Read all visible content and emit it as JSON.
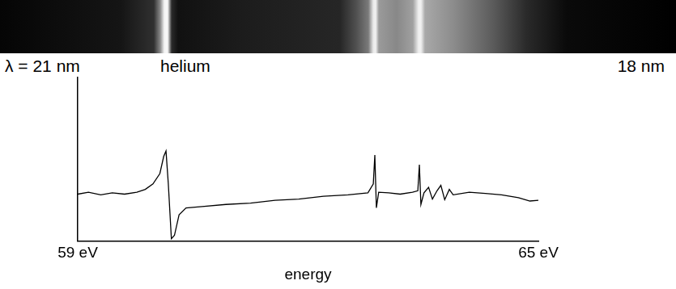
{
  "spectrum_image": {
    "left_label": "λ = 21 nm",
    "center_label": "helium",
    "right_label": "18 nm"
  },
  "chart_data": {
    "type": "line",
    "xlabel": "energy",
    "x": [
      59.0,
      59.14,
      59.3,
      59.45,
      59.61,
      59.77,
      59.88,
      59.98,
      60.07,
      60.12,
      60.15,
      60.18,
      60.22,
      60.26,
      60.32,
      60.41,
      60.62,
      60.93,
      61.25,
      61.57,
      61.88,
      62.2,
      62.52,
      62.78,
      62.85,
      62.87,
      62.89,
      62.92,
      63.05,
      63.2,
      63.36,
      63.43,
      63.45,
      63.47,
      63.51,
      63.57,
      63.62,
      63.68,
      63.73,
      63.78,
      63.84,
      63.89,
      64.1,
      64.31,
      64.52,
      64.74,
      64.89,
      65.0
    ],
    "values": [
      28.6,
      29.8,
      28.2,
      29.4,
      28.6,
      29.8,
      31.5,
      34.9,
      41.2,
      51.7,
      55.0,
      34.9,
      1.3,
      3.4,
      16.0,
      20.2,
      21.0,
      22.3,
      23.1,
      24.8,
      25.6,
      27.3,
      28.2,
      29.4,
      34.9,
      52.5,
      20.2,
      29.8,
      29.4,
      28.6,
      29.8,
      30.7,
      46.6,
      22.3,
      29.4,
      32.8,
      25.6,
      30.7,
      34.0,
      25.2,
      31.5,
      28.2,
      29.8,
      29.0,
      28.2,
      26.5,
      24.4,
      24.8
    ],
    "color": "#000000",
    "marker": "none",
    "xlim": [
      59,
      65
    ],
    "xticks": [
      {
        "value": 59,
        "label": "59 eV"
      },
      {
        "value": 65,
        "label": "65 eV"
      }
    ],
    "ylim": [
      0,
      100
    ],
    "grid": false,
    "tick_labels": "x"
  }
}
